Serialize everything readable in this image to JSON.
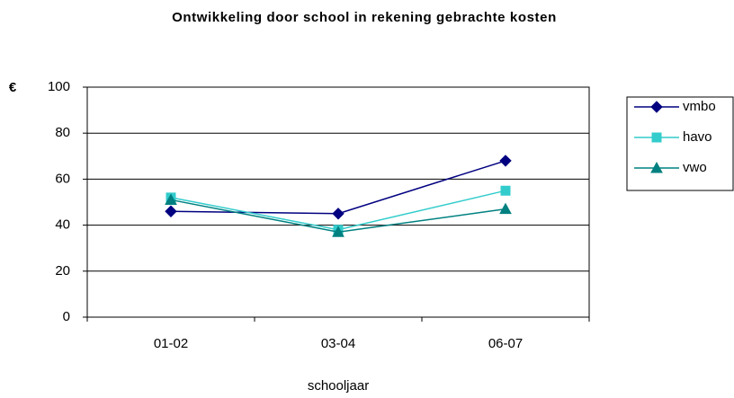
{
  "chart_data": {
    "type": "line",
    "title": "Ontwikkeling door school in rekening gebrachte kosten",
    "y_label": "€",
    "x_label": "schooljaar",
    "categories": [
      "01-02",
      "03-04",
      "06-07"
    ],
    "series": [
      {
        "name": "vmbo",
        "color": "#000080",
        "marker": "diamond",
        "values": [
          46,
          45,
          68
        ]
      },
      {
        "name": "havo",
        "color": "#33cccc",
        "marker": "square",
        "values": [
          52,
          38,
          55
        ]
      },
      {
        "name": "vwo",
        "color": "#008080",
        "marker": "triangle",
        "values": [
          51,
          37,
          47
        ]
      }
    ],
    "ylim": [
      0,
      100
    ],
    "yticks": [
      0,
      20,
      40,
      60,
      80,
      100
    ],
    "grid": true,
    "legend": "right"
  }
}
